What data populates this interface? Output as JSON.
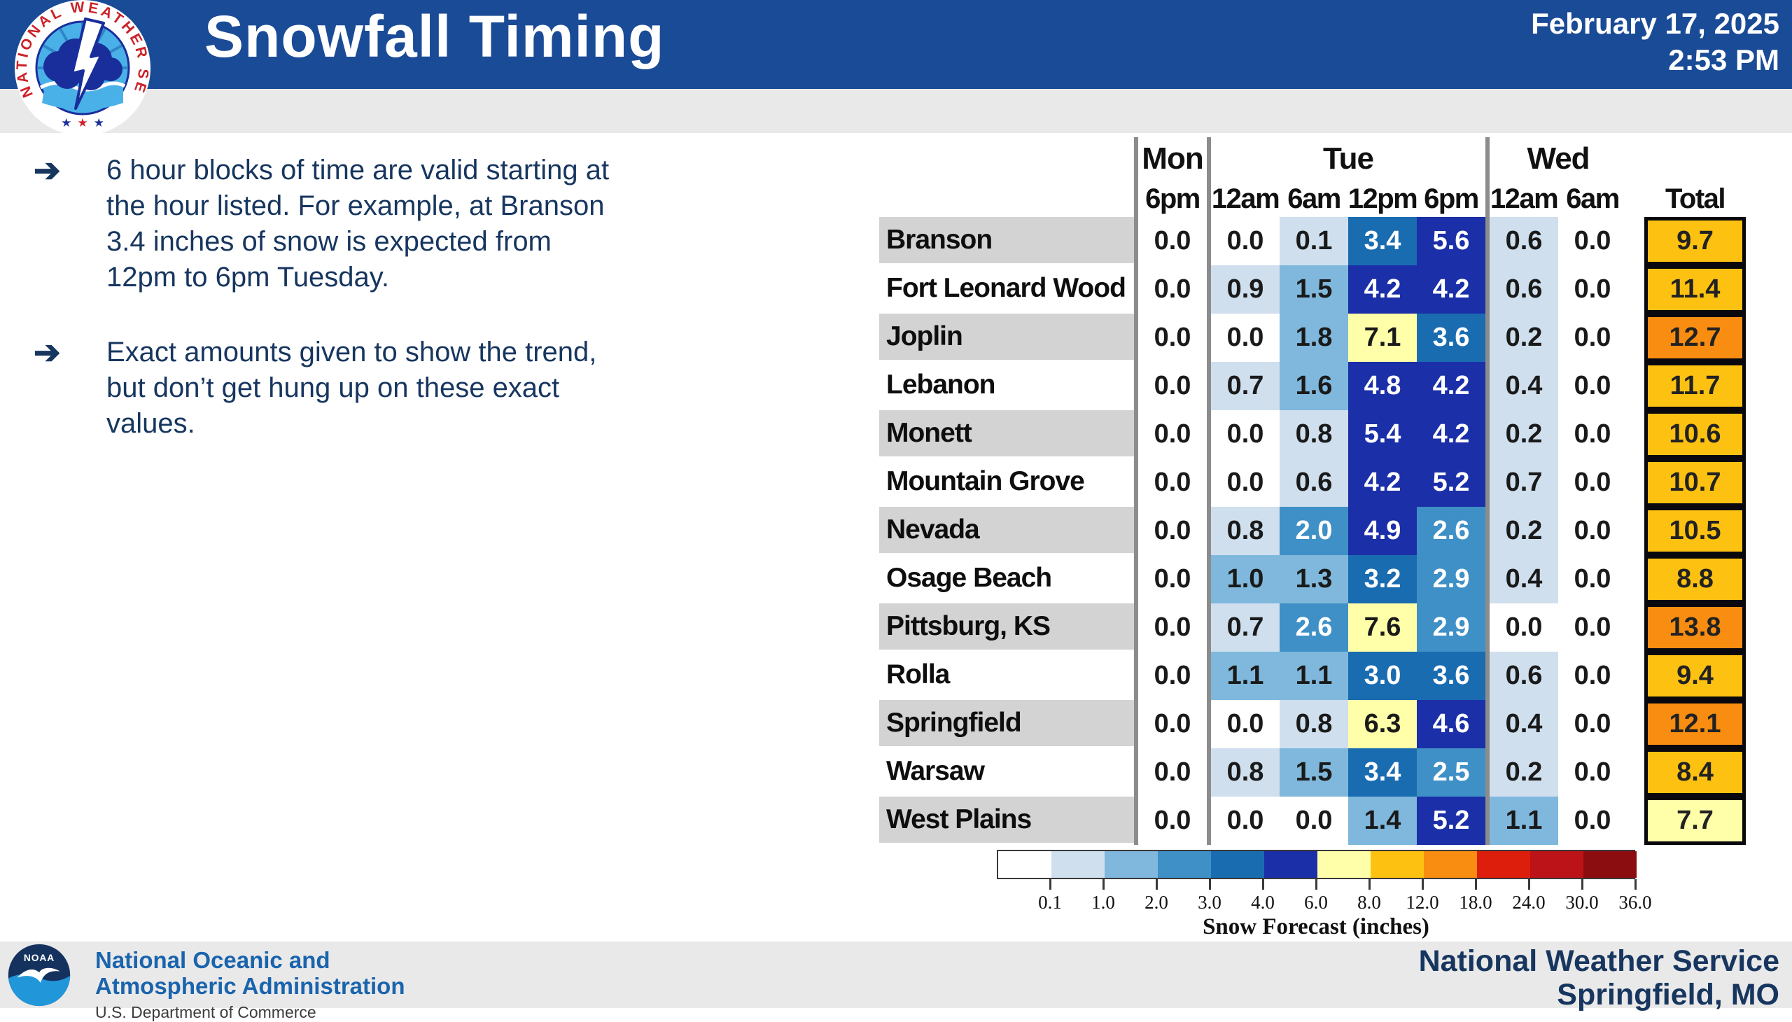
{
  "header": {
    "title": "Snowfall Timing",
    "date_line1": "February 17, 2025",
    "date_line2": "2:53 PM",
    "logo": "nws-logo"
  },
  "bullets": [
    {
      "text": "6 hour blocks of time are valid starting at\nthe hour listed. For example, at Branson\n3.4 inches of snow is expected from\n12pm to 6pm Tuesday."
    },
    {
      "text": "Exact amounts given to show the trend,\nbut don’t get hung up on these exact\nvalues."
    }
  ],
  "chart_data": {
    "type": "heatmap",
    "title": "Snowfall Timing",
    "day_groups": [
      {
        "label": "Mon",
        "cols": 1
      },
      {
        "label": "Tue",
        "cols": 4
      },
      {
        "label": "Wed",
        "cols": 2
      }
    ],
    "time_headers": [
      "6pm",
      "12am",
      "6am",
      "12pm",
      "6pm",
      "12am",
      "6am"
    ],
    "total_label": "Total",
    "columns": [
      "Mon 6pm",
      "Tue 12am",
      "Tue 6am",
      "Tue 12pm",
      "Tue 6pm",
      "Wed 12am",
      "Wed 6am",
      "Total"
    ],
    "rows": [
      {
        "city": "Branson",
        "values": [
          0.0,
          0.0,
          0.1,
          3.4,
          5.6,
          0.6,
          0.0
        ],
        "total": 9.7
      },
      {
        "city": "Fort Leonard Wood",
        "values": [
          0.0,
          0.9,
          1.5,
          4.2,
          4.2,
          0.6,
          0.0
        ],
        "total": 11.4
      },
      {
        "city": "Joplin",
        "values": [
          0.0,
          0.0,
          1.8,
          7.1,
          3.6,
          0.2,
          0.0
        ],
        "total": 12.7
      },
      {
        "city": "Lebanon",
        "values": [
          0.0,
          0.7,
          1.6,
          4.8,
          4.2,
          0.4,
          0.0
        ],
        "total": 11.7
      },
      {
        "city": "Monett",
        "values": [
          0.0,
          0.0,
          0.8,
          5.4,
          4.2,
          0.2,
          0.0
        ],
        "total": 10.6
      },
      {
        "city": "Mountain Grove",
        "values": [
          0.0,
          0.0,
          0.6,
          4.2,
          5.2,
          0.7,
          0.0
        ],
        "total": 10.7
      },
      {
        "city": "Nevada",
        "values": [
          0.0,
          0.8,
          2.0,
          4.9,
          2.6,
          0.2,
          0.0
        ],
        "total": 10.5
      },
      {
        "city": "Osage Beach",
        "values": [
          0.0,
          1.0,
          1.3,
          3.2,
          2.9,
          0.4,
          0.0
        ],
        "total": 8.8
      },
      {
        "city": "Pittsburg, KS",
        "values": [
          0.0,
          0.7,
          2.6,
          7.6,
          2.9,
          0.0,
          0.0
        ],
        "total": 13.8
      },
      {
        "city": "Rolla",
        "values": [
          0.0,
          1.1,
          1.1,
          3.0,
          3.6,
          0.6,
          0.0
        ],
        "total": 9.4
      },
      {
        "city": "Springfield",
        "values": [
          0.0,
          0.0,
          0.8,
          6.3,
          4.6,
          0.4,
          0.0
        ],
        "total": 12.1
      },
      {
        "city": "Warsaw",
        "values": [
          0.0,
          0.8,
          1.5,
          3.4,
          2.5,
          0.2,
          0.0
        ],
        "total": 8.4
      },
      {
        "city": "West Plains",
        "values": [
          0.0,
          0.0,
          0.0,
          1.4,
          5.2,
          1.1,
          0.0
        ],
        "total": 7.7
      }
    ],
    "colorbar": {
      "label": "Snow Forecast (inches)",
      "tick_labels": [
        "0.1",
        "1.0",
        "2.0",
        "3.0",
        "4.0",
        "6.0",
        "8.0",
        "12.0",
        "18.0",
        "24.0",
        "30.0",
        "36.0"
      ],
      "breaks": [
        0.1,
        1.0,
        2.0,
        3.0,
        4.0,
        6.0,
        8.0,
        12.0,
        18.0,
        24.0,
        30.0,
        36.0
      ],
      "colors": [
        "#ffffff",
        "#cfdfee",
        "#7fb8dc",
        "#3f90c6",
        "#1a6cb1",
        "#1b2fa8",
        "#ffffaa",
        "#fdc111",
        "#f98d11",
        "#dd1e0d",
        "#bc1318",
        "#8c0d10"
      ],
      "white_text_colors": [
        "#3f90c6",
        "#1a6cb1",
        "#1b2fa8"
      ]
    }
  },
  "footer": {
    "noaa_logo": "noaa-logo",
    "noaa_line1": "National Oceanic and",
    "noaa_line2": "Atmospheric Administration",
    "dept_line": "U.S. Department of Commerce",
    "nws_line1": "National Weather Service",
    "nws_line2": "Springfield, MO"
  },
  "colors": {
    "header_bg": "#1a4b96",
    "band_bg": "#e9e9e9",
    "navy_text": "#17365f",
    "row_stripe": "#d3d3d3",
    "group_separator": "#8c8c8c",
    "noaa_blue": "#1a64ad",
    "nws_logo_red": "#cc2229",
    "nws_logo_blue": "#1a2e9b",
    "nws_logo_sky": "#4ab1e8"
  }
}
